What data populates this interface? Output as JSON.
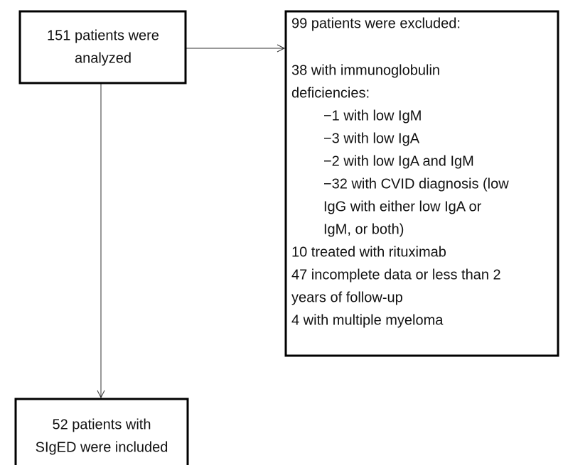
{
  "nodes": [
    {
      "lines": [
        "151 patients were",
        "analyzed"
      ]
    },
    {
      "lines": [
        "99 patients were excluded:",
        "38 with immunoglobulin",
        "deficiencies:",
        "−1 with low IgM",
        "−3 with low IgA",
        "−2 with low IgA and IgM",
        "−32 with CVID diagnosis (low",
        "IgG with either low IgA or",
        "IgM, or both)",
        "10 treated with rituximab",
        "47 incomplete data or less than 2",
        "years of follow-up",
        "4 with multiple myeloma"
      ]
    },
    {
      "lines": [
        "52 patients with",
        "SIgED were included"
      ]
    }
  ]
}
